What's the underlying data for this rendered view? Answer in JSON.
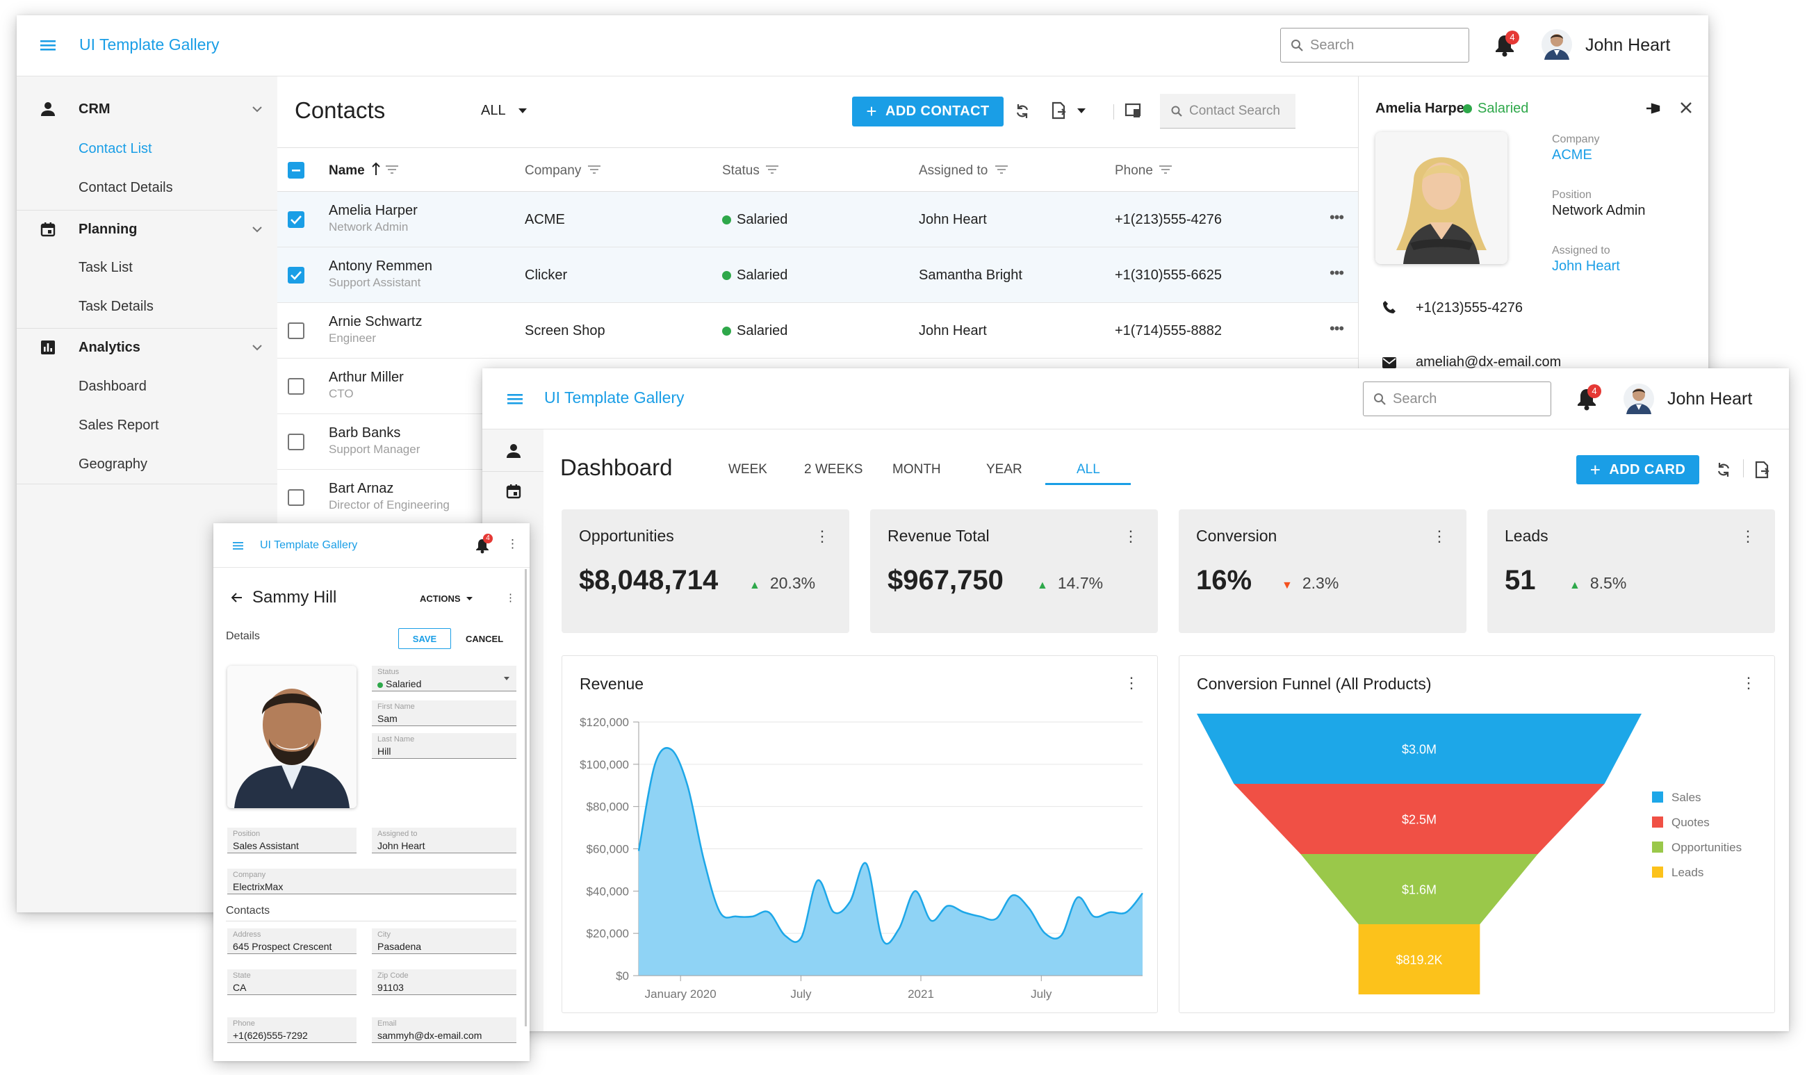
{
  "crm": {
    "app_title": "UI Template Gallery",
    "search_placeholder": "Search",
    "notif_count": "4",
    "user_name": "John Heart",
    "sidebar": {
      "groups": [
        {
          "label": "CRM",
          "items": [
            "Contact List",
            "Contact Details"
          ]
        },
        {
          "label": "Planning",
          "items": [
            "Task List",
            "Task Details"
          ]
        },
        {
          "label": "Analytics",
          "items": [
            "Dashboard",
            "Sales Report",
            "Geography"
          ]
        }
      ]
    },
    "page_title": "Contacts",
    "filter_label": "ALL",
    "add_button": "ADD CONTACT",
    "contact_search_placeholder": "Contact Search",
    "columns": [
      "Name",
      "Company",
      "Status",
      "Assigned to",
      "Phone"
    ],
    "rows": [
      {
        "name": "Amelia Harper",
        "position": "Network Admin",
        "company": "ACME",
        "status": "Salaried",
        "assigned": "John Heart",
        "phone": "+1(213)555-4276",
        "checked": true
      },
      {
        "name": "Antony Remmen",
        "position": "Support Assistant",
        "company": "Clicker",
        "status": "Salaried",
        "assigned": "Samantha Bright",
        "phone": "+1(310)555-6625",
        "checked": true
      },
      {
        "name": "Arnie Schwartz",
        "position": "Engineer",
        "company": "Screen Shop",
        "status": "Salaried",
        "assigned": "John Heart",
        "phone": "+1(714)555-8882",
        "checked": false
      },
      {
        "name": "Arthur Miller",
        "position": "CTO",
        "checked": false
      },
      {
        "name": "Barb Banks",
        "position": "Support Manager",
        "checked": false
      },
      {
        "name": "Bart Arnaz",
        "position": "Director of Engineering",
        "checked": false
      }
    ],
    "panel": {
      "name": "Amelia Harper",
      "status": "Salaried",
      "company_label": "Company",
      "company": "ACME",
      "position_label": "Position",
      "position": "Network Admin",
      "assigned_label": "Assigned to",
      "assigned": "John Heart",
      "phone": "+1(213)555-4276",
      "email": "ameliah@dx-email.com"
    }
  },
  "dashboard": {
    "app_title": "UI Template Gallery",
    "search_placeholder": "Search",
    "notif_count": "4",
    "user_name": "John Heart",
    "page_title": "Dashboard",
    "periods": [
      "WEEK",
      "2 WEEKS",
      "MONTH",
      "YEAR",
      "ALL"
    ],
    "active_period": "ALL",
    "add_button": "ADD CARD",
    "cards": [
      {
        "title": "Opportunities",
        "value": "$8,048,714",
        "change": "20.3%",
        "trend": "up"
      },
      {
        "title": "Revenue Total",
        "value": "$967,750",
        "change": "14.7%",
        "trend": "up"
      },
      {
        "title": "Conversion",
        "value": "16%",
        "change": "2.3%",
        "trend": "down"
      },
      {
        "title": "Leads",
        "value": "51",
        "change": "8.5%",
        "trend": "up"
      }
    ],
    "trend_colors": {
      "up": "#2ea84a",
      "down": "#f4511e"
    }
  },
  "chart_data": [
    {
      "type": "area",
      "title": "Revenue",
      "xlabel": "",
      "ylabel": "",
      "ylim": [
        0,
        120000
      ],
      "y_ticks": [
        "$0",
        "$20,000",
        "$40,000",
        "$60,000",
        "$80,000",
        "$100,000",
        "$120,000"
      ],
      "x_ticks": [
        "January 2020",
        "July",
        "2021",
        "July"
      ],
      "grid": true,
      "color": "#1da7e8",
      "values": [
        59000,
        100000,
        107000,
        90000,
        55000,
        30000,
        28000,
        28000,
        30000,
        19000,
        18000,
        45000,
        30000,
        35000,
        53000,
        17000,
        22000,
        40000,
        26000,
        33000,
        30000,
        28000,
        27000,
        38000,
        32000,
        20000,
        19000,
        37000,
        28000,
        30000,
        30000,
        39000
      ]
    },
    {
      "type": "funnel",
      "title": "Conversion Funnel (All Products)",
      "categories": [
        "Sales",
        "Quotes",
        "Opportunities",
        "Leads"
      ],
      "labels": [
        "$3.0M",
        "$2.5M",
        "$1.6M",
        "$819.2K"
      ],
      "values": [
        3000000,
        2500000,
        1600000,
        819200
      ],
      "colors": [
        "#1da7e8",
        "#f05045",
        "#9ac84a",
        "#fcc21b"
      ]
    }
  ],
  "mobile": {
    "app_title": "UI Template Gallery",
    "notif_count": "4",
    "name": "Sammy Hill",
    "actions_label": "ACTIONS",
    "details_label": "Details",
    "save_label": "SAVE",
    "cancel_label": "CANCEL",
    "fields": {
      "status_label": "Status",
      "status": "Salaried",
      "first_label": "First Name",
      "first": "Sam",
      "last_label": "Last Name",
      "last": "Hill",
      "position_label": "Position",
      "position": "Sales Assistant",
      "assigned_label": "Assigned to",
      "assigned": "John Heart",
      "company_label": "Company",
      "company": "ElectrixMax",
      "contacts_heading": "Contacts",
      "address_label": "Address",
      "address": "645 Prospect Crescent",
      "city_label": "City",
      "city": "Pasadena",
      "state_label": "State",
      "state": "CA",
      "zip_label": "Zip Code",
      "zip": "91103",
      "phone_label": "Phone",
      "phone": "+1(626)555-7292",
      "email_label": "Email",
      "email": "sammyh@dx-email.com"
    }
  }
}
